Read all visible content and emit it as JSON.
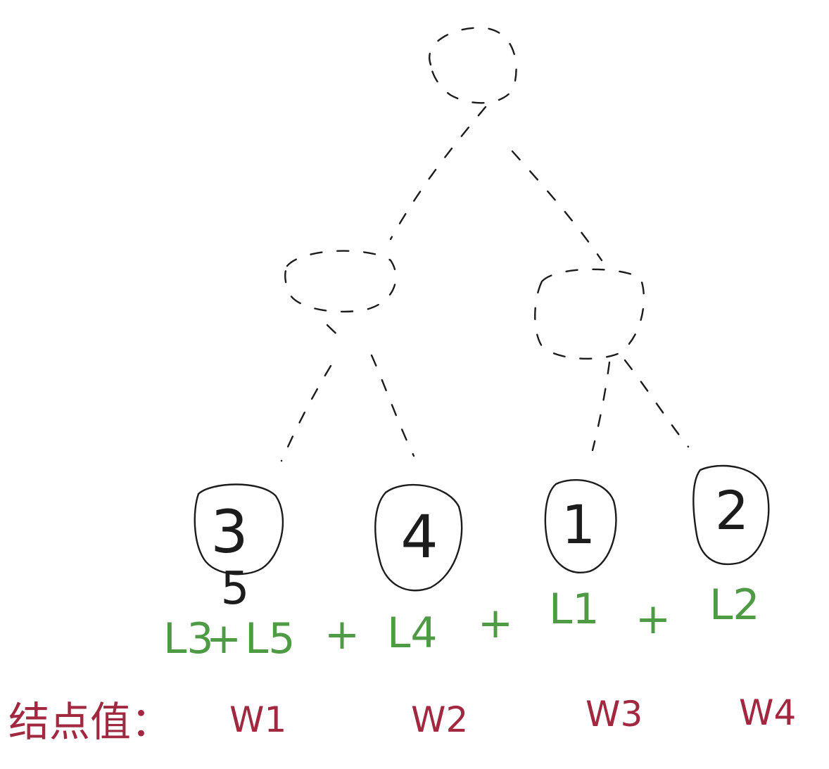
{
  "colors": {
    "ink": "#1c1c1c",
    "sum": "#4e9a45",
    "weight": "#a22840",
    "background": "#ffffff"
  },
  "leaves": [
    {
      "label": "3",
      "extra": "5"
    },
    {
      "label": "4"
    },
    {
      "label": "1"
    },
    {
      "label": "2"
    }
  ],
  "sum_row": {
    "terms": [
      "L3",
      "L5",
      "L4",
      "L1",
      "L2"
    ],
    "plus": "+"
  },
  "weights_row": {
    "label": "结点值：",
    "values": [
      "W1",
      "W2",
      "W3",
      "W4"
    ]
  }
}
